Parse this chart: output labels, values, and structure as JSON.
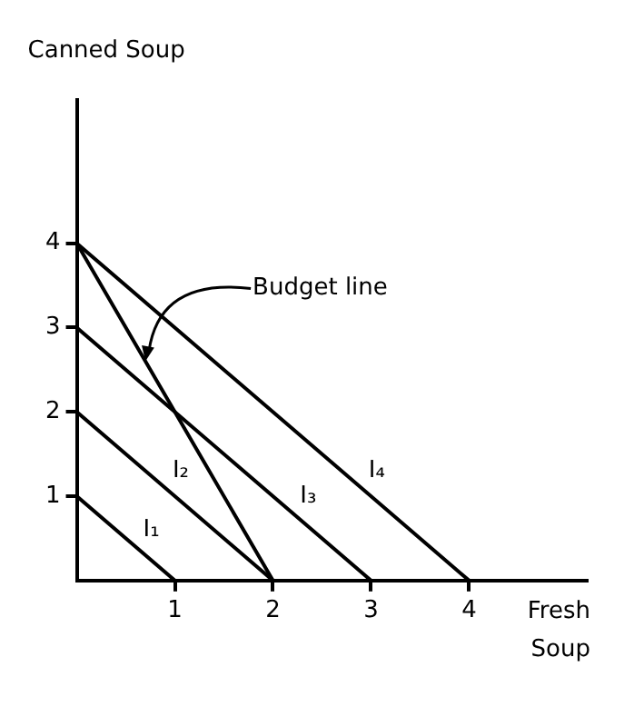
{
  "chart_data": {
    "type": "line",
    "xlabel": "Fresh Soup",
    "ylabel": "Canned Soup",
    "xlim": [
      0,
      5.2
    ],
    "ylim": [
      0,
      5.7
    ],
    "xticks": [
      1,
      2,
      3,
      4
    ],
    "yticks": [
      1,
      2,
      3,
      4
    ],
    "grid": false,
    "legend": false,
    "series": [
      {
        "name": "I₁",
        "color": "#000000",
        "x": [
          0,
          1
        ],
        "values": [
          1,
          0
        ]
      },
      {
        "name": "I₂",
        "color": "#000000",
        "x": [
          0,
          2
        ],
        "values": [
          2,
          0
        ]
      },
      {
        "name": "I₃",
        "color": "#000000",
        "x": [
          0,
          3
        ],
        "values": [
          3,
          0
        ]
      },
      {
        "name": "I₄",
        "color": "#000000",
        "x": [
          0,
          4
        ],
        "values": [
          4,
          0
        ]
      },
      {
        "color": "#000000",
        "x": [
          0,
          2
        ],
        "values": [
          4,
          0
        ]
      }
    ],
    "annotations": [
      {
        "text": "Budget line",
        "x": 0.7,
        "y": 2.6
      }
    ]
  }
}
